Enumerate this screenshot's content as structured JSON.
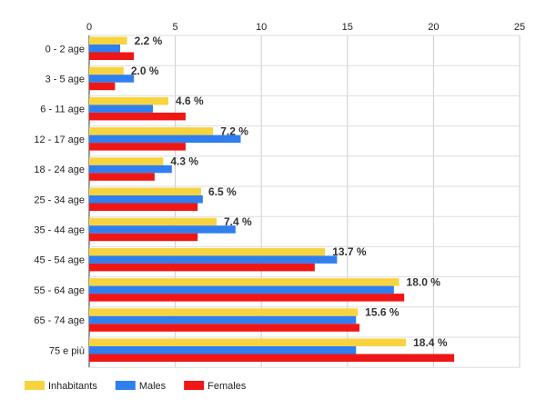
{
  "chart_data": {
    "type": "bar",
    "orientation": "horizontal",
    "categories": [
      "0 - 2 age",
      "3 - 5 age",
      "6 - 11 age",
      "12 - 17 age",
      "18 - 24 age",
      "25 - 34 age",
      "35 - 44 age",
      "45 - 54 age",
      "55 - 64 age",
      "65 - 74 age",
      "75 e più"
    ],
    "series": [
      {
        "name": "Inhabitants",
        "color": "#f7d43f",
        "values": [
          2.2,
          2.0,
          4.6,
          7.2,
          4.3,
          6.5,
          7.4,
          13.7,
          18.0,
          15.6,
          18.4
        ]
      },
      {
        "name": "Males",
        "color": "#2f7ff0",
        "values": [
          1.8,
          2.6,
          3.7,
          8.8,
          4.8,
          6.6,
          8.5,
          14.4,
          17.7,
          15.5,
          15.5
        ]
      },
      {
        "name": "Females",
        "color": "#f01616",
        "values": [
          2.6,
          1.5,
          5.6,
          5.6,
          3.8,
          6.3,
          6.3,
          13.1,
          18.3,
          15.7,
          21.2
        ]
      }
    ],
    "data_labels": [
      "2.2 %",
      "2.0 %",
      "4.6 %",
      "7.2 %",
      "4.3 %",
      "6.5 %",
      "7.4 %",
      "13.7 %",
      "18.0 %",
      "15.6 %",
      "18.4 %"
    ],
    "x_ticks": [
      "0",
      "5",
      "10",
      "15",
      "20",
      "25"
    ],
    "xlim": [
      0,
      25
    ],
    "grid": true,
    "legend_position": "bottom-left",
    "title": "",
    "xlabel": "",
    "ylabel": ""
  }
}
